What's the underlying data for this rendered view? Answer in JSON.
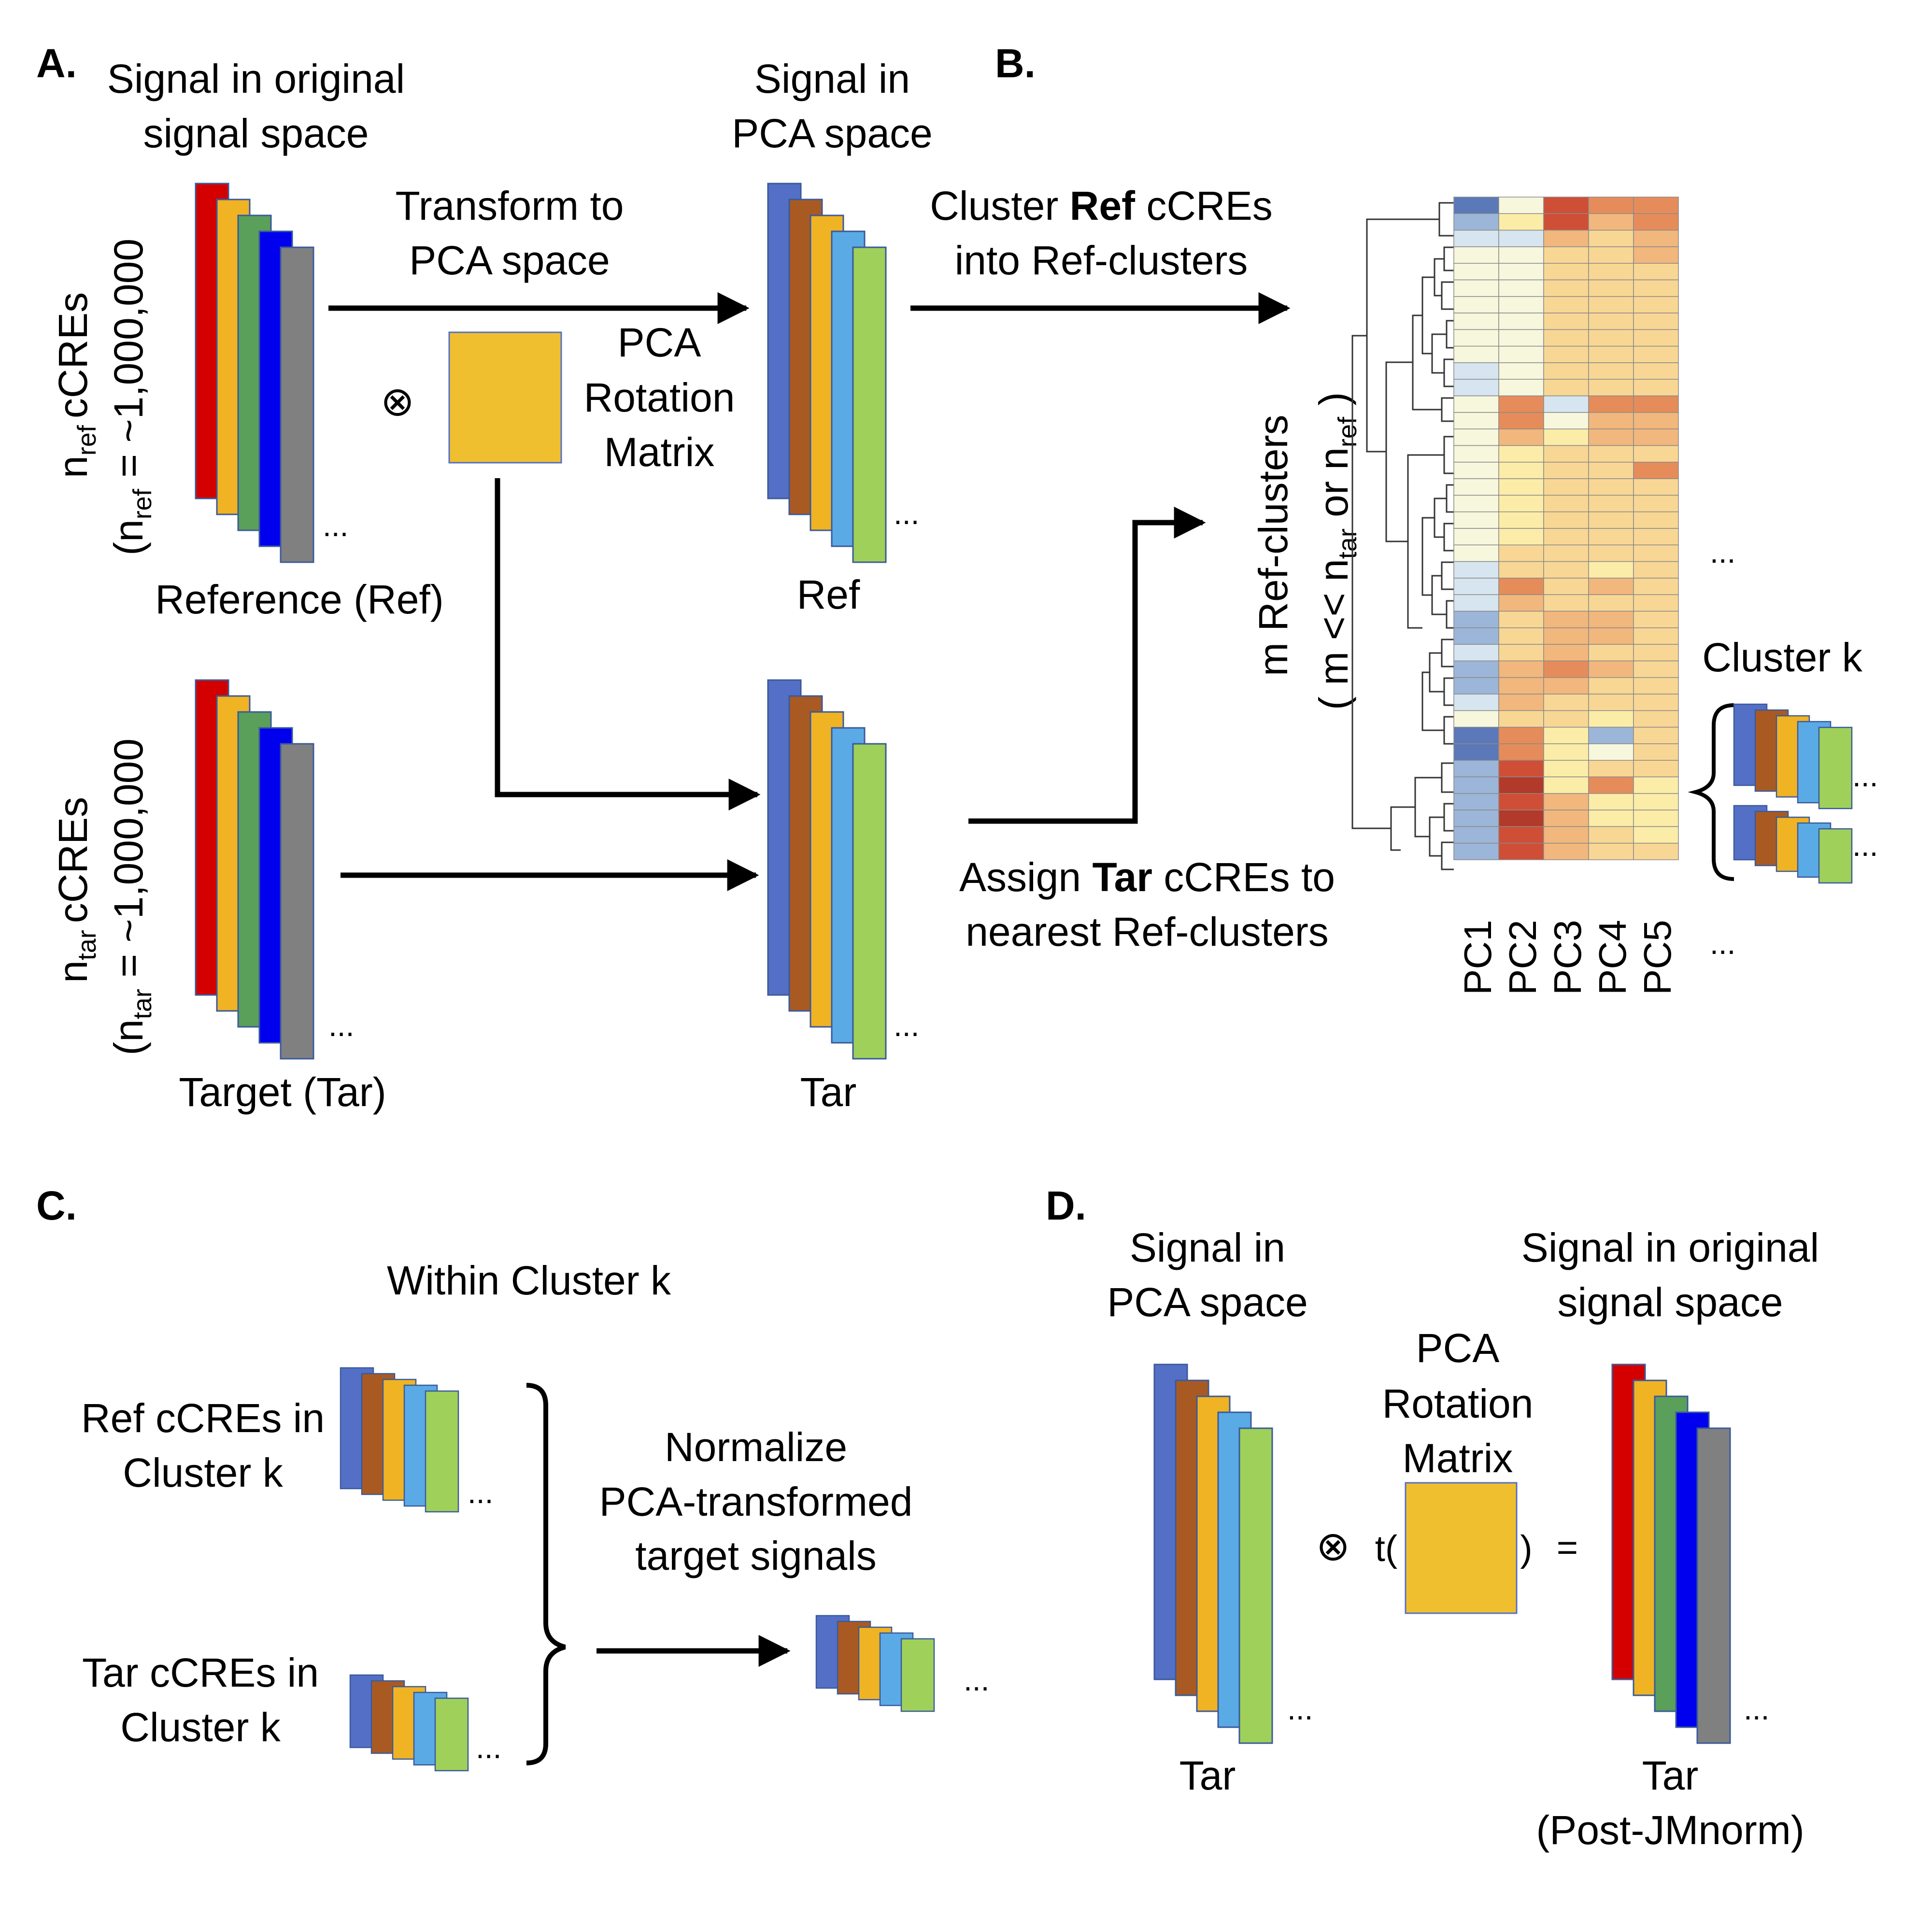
{
  "panel_a": {
    "label": "A.",
    "orig_title": [
      "Signal in original",
      "signal space"
    ],
    "pca_title": [
      "Signal in",
      "PCA space"
    ],
    "transform_label": [
      "Transform to",
      "PCA space"
    ],
    "rotation_label": [
      "PCA",
      "Rotation",
      "Matrix"
    ],
    "ref_axis_main": "cCREs",
    "ref_axis_n": "n",
    "ref_axis_sub": "ref",
    "ref_axis_formula_open": "(n",
    "ref_axis_formula_rest": " = ~1,000,000",
    "tar_axis_main": "cCREs",
    "tar_axis_n": "n",
    "tar_axis_sub": "tar",
    "tar_axis_formula_open": "(n",
    "tar_axis_formula_rest": " = ~1,000,000",
    "ref_caption": "Reference (Ref)",
    "tar_caption": "Target (Tar)",
    "ref_pca_caption": "Ref",
    "tar_pca_caption": "Tar",
    "otimes": "⊗",
    "ellipsis": "..."
  },
  "panel_b": {
    "label": "B.",
    "cluster_label_pre": "Cluster ",
    "cluster_label_bold": "Ref",
    "cluster_label_post": " cCREs",
    "cluster_label_line2": "into Ref-clusters",
    "assign_label_pre": "Assign ",
    "assign_label_bold": "Tar",
    "assign_label_post": " cCREs to",
    "assign_label_line2": "nearest Ref-clusters",
    "mref_label": "m Ref-clusters",
    "mref_sub_open": "( m << n",
    "mref_sub_tar": "tar",
    "mref_sub_or": " or n",
    "mref_sub_ref": "ref",
    "mref_sub_close": " )",
    "cluster_k": "Cluster k",
    "pcs": [
      "PC1",
      "PC2",
      "PC3",
      "PC4",
      "PC5"
    ],
    "ellipsis": "..."
  },
  "panel_c": {
    "label": "C.",
    "title": "Within Cluster k",
    "ref_label": [
      "Ref cCREs in",
      "Cluster k"
    ],
    "tar_label": [
      "Tar cCREs in",
      "Cluster k"
    ],
    "normalize_label": [
      "Normalize",
      "PCA-transformed",
      "target signals"
    ],
    "ellipsis": "..."
  },
  "panel_d": {
    "label": "D.",
    "pca_title": [
      "Signal in",
      "PCA space"
    ],
    "orig_title": [
      "Signal in original",
      "signal space"
    ],
    "rotation_label": [
      "PCA",
      "Rotation",
      "Matrix"
    ],
    "otimes": "⊗",
    "transpose_open": "t(",
    "transpose_close": ")",
    "equals": "=",
    "tar_caption": "Tar",
    "post_caption": [
      "Tar",
      "(Post-JMnorm)"
    ],
    "ellipsis": "..."
  },
  "colors": {
    "orig": [
      "#d40000",
      "#f0b323",
      "#5aa05a",
      "#0000ee",
      "#808080"
    ],
    "pca": [
      "#5470c6",
      "#a95a22",
      "#f0b323",
      "#5aaae6",
      "#9fd05a"
    ],
    "matrix": "#f0bf30",
    "heat": {
      "1": "#5b78b8",
      "2": "#9bb6d8",
      "3": "#d6e5f0",
      "4": "#f7f7dd",
      "5": "#fbeca8",
      "6": "#f8d795",
      "7": "#f2b77d",
      "8": "#e68c5a",
      "9": "#cf4e36",
      "10": "#b23a2a"
    }
  },
  "heatmap": {
    "levels": [
      [
        1,
        4,
        9,
        8,
        8
      ],
      [
        2,
        5,
        9,
        7,
        8
      ],
      [
        3,
        3,
        7,
        6,
        7
      ],
      [
        4,
        4,
        6,
        6,
        7
      ],
      [
        4,
        4,
        6,
        6,
        6
      ],
      [
        4,
        4,
        6,
        6,
        6
      ],
      [
        4,
        4,
        6,
        6,
        6
      ],
      [
        4,
        4,
        6,
        6,
        6
      ],
      [
        4,
        4,
        6,
        6,
        6
      ],
      [
        4,
        4,
        6,
        6,
        6
      ],
      [
        3,
        4,
        6,
        6,
        6
      ],
      [
        3,
        4,
        6,
        6,
        6
      ],
      [
        4,
        8,
        3,
        8,
        8
      ],
      [
        4,
        8,
        4,
        7,
        7
      ],
      [
        4,
        7,
        5,
        7,
        7
      ],
      [
        4,
        5,
        6,
        6,
        6
      ],
      [
        4,
        5,
        6,
        6,
        8
      ],
      [
        4,
        5,
        6,
        6,
        6
      ],
      [
        4,
        5,
        6,
        6,
        6
      ],
      [
        4,
        5,
        6,
        6,
        6
      ],
      [
        4,
        5,
        6,
        6,
        6
      ],
      [
        4,
        6,
        6,
        6,
        6
      ],
      [
        3,
        6,
        6,
        5,
        6
      ],
      [
        3,
        8,
        6,
        7,
        6
      ],
      [
        3,
        7,
        6,
        6,
        6
      ],
      [
        2,
        6,
        7,
        7,
        6
      ],
      [
        2,
        6,
        7,
        7,
        6
      ],
      [
        3,
        6,
        7,
        6,
        6
      ],
      [
        2,
        7,
        8,
        7,
        6
      ],
      [
        2,
        7,
        7,
        6,
        6
      ],
      [
        3,
        7,
        6,
        6,
        6
      ],
      [
        4,
        6,
        6,
        5,
        6
      ],
      [
        1,
        8,
        5,
        2,
        6
      ],
      [
        1,
        8,
        5,
        4,
        6
      ],
      [
        2,
        9,
        5,
        6,
        6
      ],
      [
        2,
        10,
        5,
        8,
        5
      ],
      [
        2,
        9,
        7,
        5,
        5
      ],
      [
        2,
        10,
        7,
        5,
        5
      ],
      [
        2,
        9,
        7,
        6,
        5
      ],
      [
        2,
        9,
        7,
        6,
        6
      ]
    ]
  }
}
